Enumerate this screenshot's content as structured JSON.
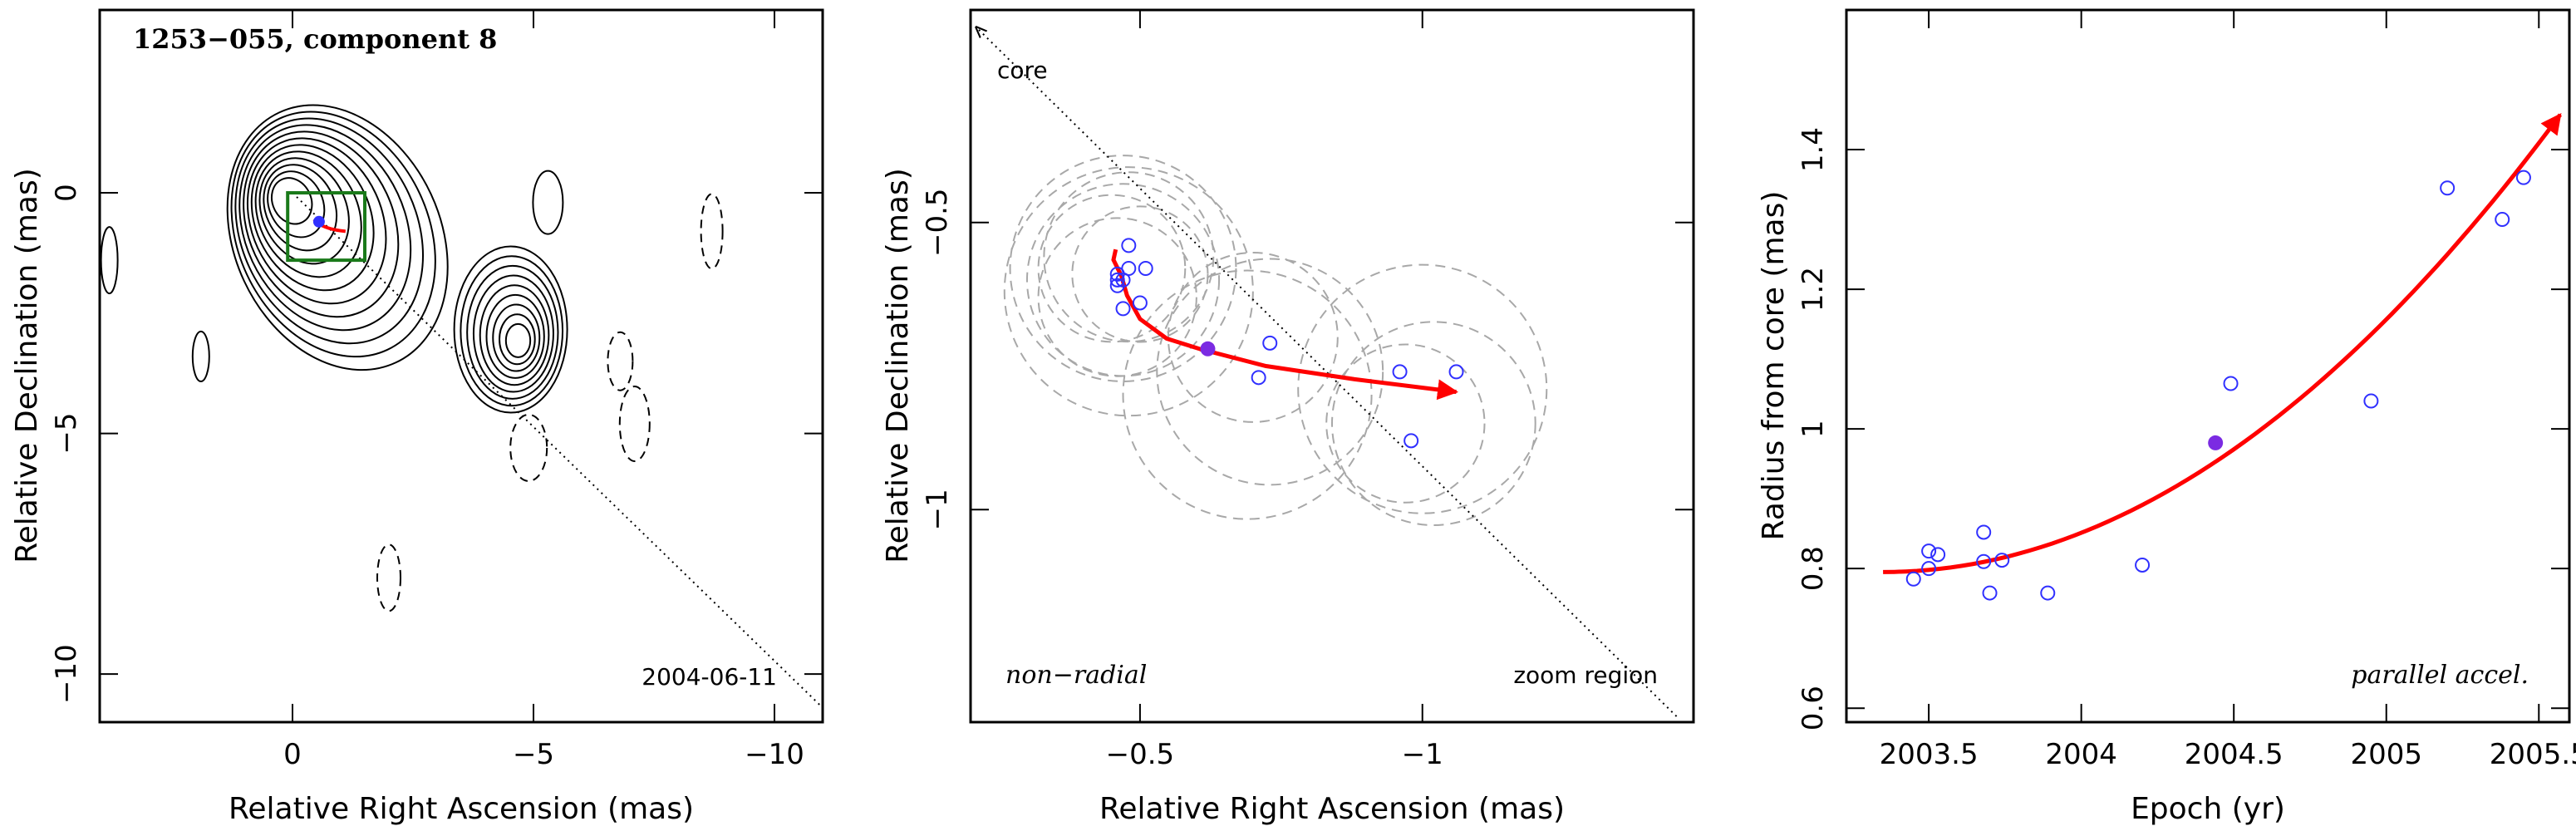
{
  "chart_data": [
    {
      "type": "contour",
      "title": "1253−055, component 8",
      "date_label": "2004-06-11",
      "xlabel": "Relative Right Ascension (mas)",
      "ylabel": "Relative Declination (mas)",
      "xlim": [
        4.0,
        -11.0
      ],
      "ylim": [
        -11.0,
        3.8
      ],
      "x_ticks": [
        0,
        -5,
        -10
      ],
      "y_ticks": [
        0,
        -5,
        -10
      ],
      "x_tick_labels": [
        "0",
        "−5",
        "−10"
      ],
      "y_tick_labels": [
        "0",
        "−5",
        "−10"
      ],
      "components": [
        {
          "ra": 0.1,
          "dec": -0.1,
          "flux_levels": 12
        },
        {
          "ra": -4.7,
          "dec": -3.1,
          "flux_levels": 9
        }
      ],
      "zoom_box": {
        "ra": [
          0.1,
          -1.5
        ],
        "dec": [
          0.0,
          -1.4
        ]
      },
      "core_direction_line": {
        "from": [
          0.0,
          0.0
        ],
        "to": [
          -11.0,
          -10.7
        ]
      },
      "colors": {
        "contour": "#000000",
        "zoom_box": "#1a7a1a",
        "track": "#ff0000",
        "points": "#3030ff"
      }
    },
    {
      "type": "scatter",
      "xlabel": "Relative Right Ascension (mas)",
      "ylabel": "Relative Declination (mas)",
      "xlim": [
        -0.2,
        -1.48
      ],
      "ylim": [
        -1.37,
        -0.13
      ],
      "x_ticks": [
        -0.5,
        -1.0
      ],
      "y_ticks": [
        -0.5,
        -1.0
      ],
      "x_tick_labels": [
        "−0.5",
        "−1"
      ],
      "y_tick_labels": [
        "−0.5",
        "−1"
      ],
      "annotations": {
        "core": "core",
        "left": "non−radial",
        "right": "zoom region"
      },
      "positions": [
        {
          "ra": -0.51,
          "dec": -0.58
        },
        {
          "ra": -0.48,
          "dec": -0.58
        },
        {
          "ra": -0.48,
          "dec": -0.54
        },
        {
          "ra": -0.47,
          "dec": -0.6
        },
        {
          "ra": -0.46,
          "dec": -0.59
        },
        {
          "ra": -0.46,
          "dec": -0.61
        },
        {
          "ra": -0.46,
          "dec": -0.6
        },
        {
          "ra": -0.5,
          "dec": -0.64
        },
        {
          "ra": -0.47,
          "dec": -0.65
        },
        {
          "ra": -0.73,
          "dec": -0.71
        },
        {
          "ra": -0.71,
          "dec": -0.77
        },
        {
          "ra": -0.96,
          "dec": -0.76
        },
        {
          "ra": -1.06,
          "dec": -0.76
        },
        {
          "ra": -0.98,
          "dec": -0.88
        }
      ],
      "highlight": {
        "ra": -0.62,
        "dec": -0.72
      },
      "circles": [
        {
          "ra": -0.47,
          "dec": -0.58,
          "r": 0.2
        },
        {
          "ra": -0.47,
          "dec": -0.6,
          "r": 0.17
        },
        {
          "ra": -0.48,
          "dec": -0.62,
          "r": 0.22
        },
        {
          "ra": -0.45,
          "dec": -0.58,
          "r": 0.13
        },
        {
          "ra": -0.48,
          "dec": -0.56,
          "r": 0.15
        },
        {
          "ra": -0.46,
          "dec": -0.63,
          "r": 0.14
        },
        {
          "ra": -0.5,
          "dec": -0.59,
          "r": 0.12
        },
        {
          "ra": -0.73,
          "dec": -0.76,
          "r": 0.2
        },
        {
          "ra": -0.69,
          "dec": -0.8,
          "r": 0.22
        },
        {
          "ra": -0.7,
          "dec": -0.7,
          "r": 0.15
        },
        {
          "ra": -1.0,
          "dec": -0.79,
          "r": 0.22
        },
        {
          "ra": -1.02,
          "dec": -0.85,
          "r": 0.18
        },
        {
          "ra": -0.97,
          "dec": -0.85,
          "r": 0.14
        }
      ],
      "track": [
        [
          -0.457,
          -0.547
        ],
        [
          -0.453,
          -0.565
        ],
        [
          -0.467,
          -0.593
        ],
        [
          -0.477,
          -0.627
        ],
        [
          -0.5,
          -0.668
        ],
        [
          -0.547,
          -0.702
        ],
        [
          -0.605,
          -0.72
        ],
        [
          -0.723,
          -0.75
        ],
        [
          -0.88,
          -0.773
        ],
        [
          -1.06,
          -0.795
        ]
      ],
      "core_direction_line": {
        "from": [
          -0.21,
          -0.16
        ],
        "to": [
          -1.45,
          -1.36
        ]
      }
    },
    {
      "type": "scatter",
      "xlabel": "Epoch (yr)",
      "ylabel": "Radius from core (mas)",
      "xlim": [
        2003.23,
        2005.6
      ],
      "ylim": [
        0.58,
        1.6
      ],
      "x_ticks": [
        2003.5,
        2004,
        2004.5,
        2005,
        2005.5
      ],
      "y_ticks": [
        0.6,
        0.8,
        1.0,
        1.2,
        1.4
      ],
      "x_tick_labels": [
        "2003.5",
        "2004",
        "2004.5",
        "2005",
        "2005.5"
      ],
      "y_tick_labels": [
        "0.6",
        "0.8",
        "1",
        "1.2",
        "1.4"
      ],
      "annotation": "parallel accel.",
      "points": [
        {
          "x": 2003.45,
          "y": 0.785
        },
        {
          "x": 2003.5,
          "y": 0.8
        },
        {
          "x": 2003.5,
          "y": 0.825
        },
        {
          "x": 2003.53,
          "y": 0.82
        },
        {
          "x": 2003.68,
          "y": 0.852
        },
        {
          "x": 2003.68,
          "y": 0.81
        },
        {
          "x": 2003.7,
          "y": 0.765
        },
        {
          "x": 2003.74,
          "y": 0.812
        },
        {
          "x": 2003.89,
          "y": 0.765
        },
        {
          "x": 2004.2,
          "y": 0.805
        },
        {
          "x": 2004.49,
          "y": 1.065
        },
        {
          "x": 2004.95,
          "y": 1.04
        },
        {
          "x": 2005.2,
          "y": 1.345
        },
        {
          "x": 2005.38,
          "y": 1.3
        },
        {
          "x": 2005.45,
          "y": 1.36
        }
      ],
      "highlight": {
        "x": 2004.44,
        "y": 0.98
      },
      "fit_curve": {
        "x_start": 2003.35,
        "x_end": 2005.57,
        "y_start": 0.795,
        "y_end": 1.45
      }
    }
  ]
}
